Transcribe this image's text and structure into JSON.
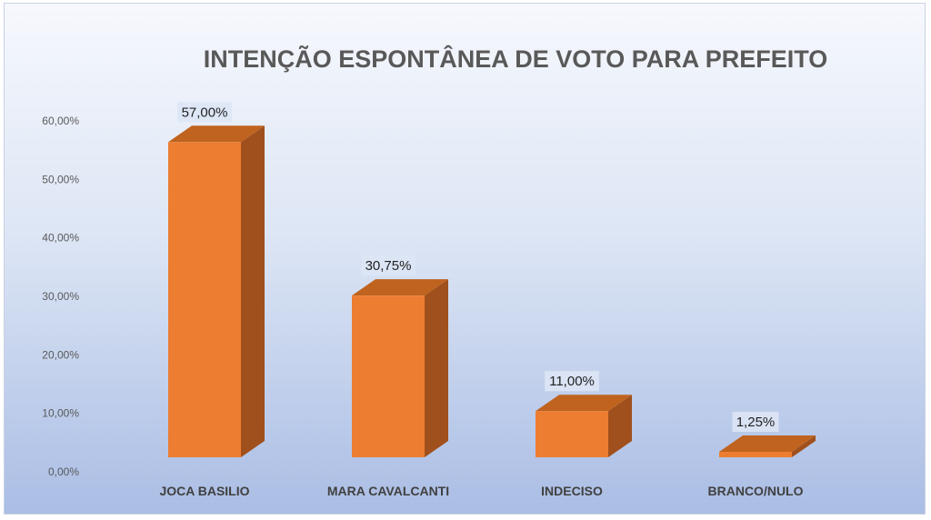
{
  "chart_data": {
    "type": "bar",
    "title": "INTENÇÃO ESPONTÂNEA DE VOTO PARA PREFEITO",
    "categories": [
      "JOCA BASILIO",
      "MARA CAVALCANTI",
      "INDECISO",
      "BRANCO/NULO"
    ],
    "values": [
      57.0,
      30.75,
      11.0,
      1.25
    ],
    "data_labels": [
      "57,00%",
      "30,75%",
      "11,00%",
      "1,25%"
    ],
    "y_ticks": [
      "0,00%",
      "10,00%",
      "20,00%",
      "30,00%",
      "40,00%",
      "50,00%",
      "60,00%"
    ],
    "ylim": [
      0,
      60
    ],
    "grid": false,
    "legend": "none",
    "three_d": true,
    "colors": {
      "bar_front": "#ed7d31",
      "bar_side": "#a0501c",
      "bar_top": "#c0631f",
      "label_box": "#dde6f5"
    }
  }
}
